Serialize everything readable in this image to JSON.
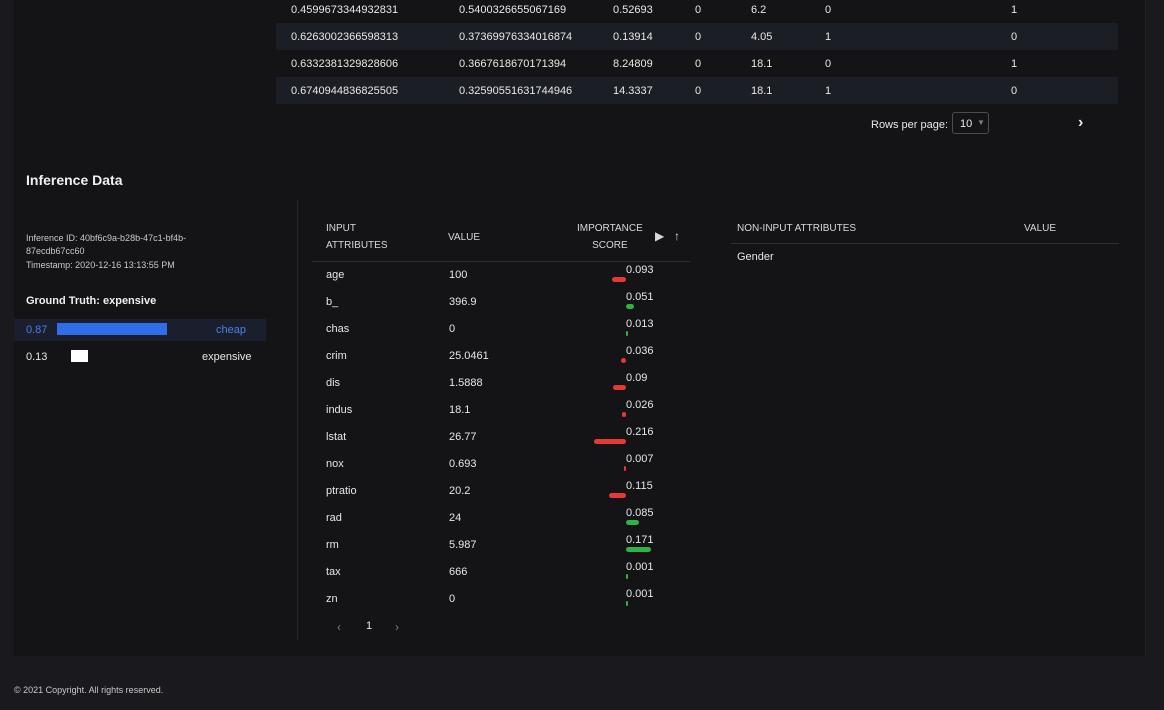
{
  "top_table": {
    "rows": [
      [
        "0.4599673344932831",
        "0.5400326655067169",
        "0.52693",
        "0",
        "6.2",
        "0",
        "1"
      ],
      [
        "0.6263002366598313",
        "0.37369976334016874",
        "0.13914",
        "0",
        "4.05",
        "1",
        "0"
      ],
      [
        "0.6332381329828606",
        "0.3667618670171394",
        "8.24809",
        "0",
        "18.1",
        "0",
        "1"
      ],
      [
        "0.6740944836825505",
        "0.32590551631744946",
        "14.3337",
        "0",
        "18.1",
        "1",
        "0"
      ]
    ],
    "rows_per_page_label": "Rows per page:",
    "rows_per_page_value": "10",
    "next_icon": "chevron-right-icon"
  },
  "inference": {
    "title": "Inference Data",
    "inference_id": "Inference ID: 40bf6c9a-b28b-47c1-bf4b-",
    "inference_id_cont": "87ecdb67cc60",
    "timestamp": "Timestamp: 2020-12-16 13:13:55 PM",
    "ground_truth": "Ground Truth: expensive",
    "predictions": [
      {
        "prob": "0.87",
        "label": "cheap",
        "value": 0.87,
        "color": "#2f6ee8"
      },
      {
        "prob": "0.13",
        "label": "expensive",
        "value": 0.13,
        "color": "#ffffff"
      }
    ]
  },
  "attributes": {
    "headers": {
      "input_line1": "INPUT",
      "input_line2": "ATTRIBUTES",
      "value": "VALUE",
      "importance_line1": "IMPORTANCE",
      "importance_line2": "SCORE",
      "play_icon": "play-icon",
      "sort_icon": "arrow-up-icon"
    },
    "rows": [
      {
        "name": "age",
        "value": "100",
        "score": "0.093",
        "sign": "neg"
      },
      {
        "name": "b_",
        "value": "396.9",
        "score": "0.051",
        "sign": "pos"
      },
      {
        "name": "chas",
        "value": "0",
        "score": "0.013",
        "sign": "pos"
      },
      {
        "name": "crim",
        "value": "25.0461",
        "score": "0.036",
        "sign": "neg"
      },
      {
        "name": "dis",
        "value": "1.5888",
        "score": "0.09",
        "sign": "neg"
      },
      {
        "name": "indus",
        "value": "18.1",
        "score": "0.026",
        "sign": "neg"
      },
      {
        "name": "lstat",
        "value": "26.77",
        "score": "0.216",
        "sign": "neg"
      },
      {
        "name": "nox",
        "value": "0.693",
        "score": "0.007",
        "sign": "neg"
      },
      {
        "name": "ptratio",
        "value": "20.2",
        "score": "0.115",
        "sign": "neg"
      },
      {
        "name": "rad",
        "value": "24",
        "score": "0.085",
        "sign": "pos"
      },
      {
        "name": "rm",
        "value": "5.987",
        "score": "0.171",
        "sign": "pos"
      },
      {
        "name": "tax",
        "value": "666",
        "score": "0.001",
        "sign": "pos"
      },
      {
        "name": "zn",
        "value": "0",
        "score": "0.001",
        "sign": "pos"
      }
    ],
    "page": "1",
    "prev_icon": "chevron-left-icon",
    "next_icon": "chevron-right-icon",
    "colors": {
      "pos": "#2fb344",
      "neg": "#e53935"
    }
  },
  "non_input": {
    "header_attr": "NON-INPUT ATTRIBUTES",
    "header_value": "VALUE",
    "rows": [
      {
        "name": "Gender",
        "value": ""
      }
    ]
  },
  "footer": "© 2021 Copyright. All rights reserved."
}
